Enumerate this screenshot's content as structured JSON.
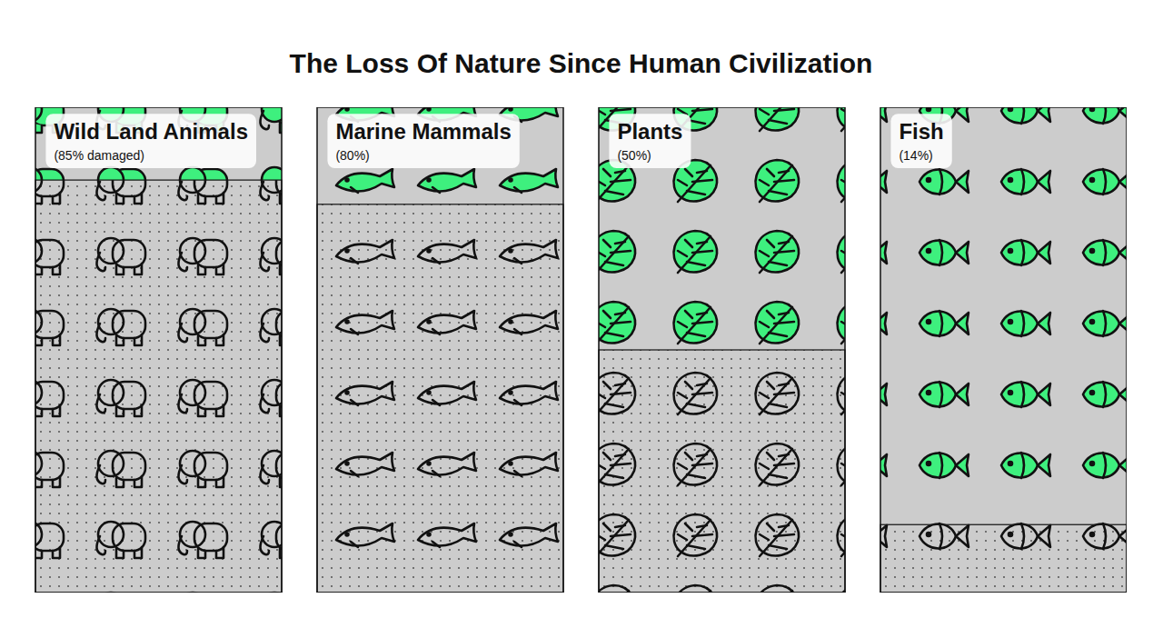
{
  "chart_data": {
    "type": "bar",
    "title": "The Loss Of Nature Since Human Civilization",
    "categories": [
      "Wild Land Animals",
      "Marine Mammals",
      "Plants",
      "Fish"
    ],
    "values": [
      85,
      80,
      50,
      14
    ],
    "value_labels": [
      "(85% damaged)",
      "(80%)",
      "(50%)",
      "(14%)"
    ],
    "data_labels": true,
    "ylim": [
      0,
      100
    ],
    "tick_labels": false,
    "color": "#cccccc"
  }
}
